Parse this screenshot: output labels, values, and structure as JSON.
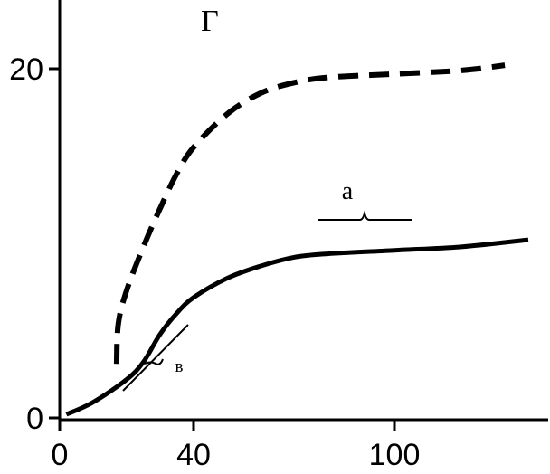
{
  "chart_data": {
    "type": "line",
    "title": "Г",
    "xlabel": "",
    "ylabel": "",
    "xlim": [
      0,
      140
    ],
    "ylim": [
      0,
      20
    ],
    "x_ticks": [
      0,
      40,
      100
    ],
    "y_ticks": [
      0,
      20
    ],
    "x_tick_labels": [
      "0",
      "40",
      "100"
    ],
    "y_tick_labels": [
      "0",
      "20"
    ],
    "grid": false,
    "series": [
      {
        "name": "a",
        "style": "solid",
        "color": "#000000",
        "x": [
          2,
          10,
          20,
          25,
          30,
          35,
          40,
          50,
          60,
          70,
          80,
          100,
          120,
          140
        ],
        "y": [
          0.2,
          0.9,
          2.2,
          3.2,
          4.8,
          6.0,
          6.9,
          8.0,
          8.7,
          9.2,
          9.4,
          9.6,
          9.8,
          10.2
        ]
      },
      {
        "name": "в",
        "style": "dashed",
        "color": "#000000",
        "x": [
          17,
          17.5,
          20,
          25,
          30,
          35,
          40,
          50,
          60,
          70,
          80,
          100,
          120,
          133
        ],
        "y": [
          3.1,
          5.4,
          7.3,
          9.8,
          12.0,
          14.0,
          15.5,
          17.4,
          18.6,
          19.2,
          19.5,
          19.7,
          19.9,
          20.2
        ]
      }
    ],
    "annotations": [
      {
        "text": "а"
      },
      {
        "text": "в"
      }
    ]
  }
}
